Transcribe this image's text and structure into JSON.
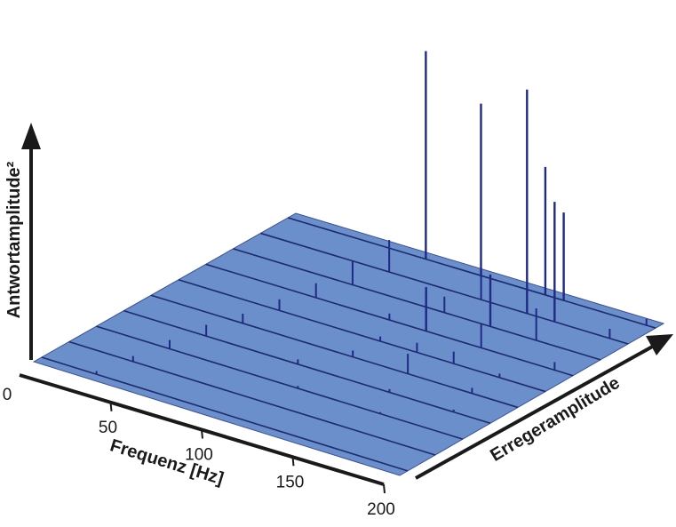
{
  "chart_data": {
    "type": "waterfall-3d",
    "xlabel": "Frequenz [Hz]",
    "ylabel": "Antwortamplitude²",
    "zlabel": "Erregeramplitude",
    "x_ticks": [
      "0",
      "50",
      "100",
      "150",
      "200"
    ],
    "x_tick_values": [
      0,
      50,
      100,
      150,
      200
    ],
    "xlim": [
      0,
      200
    ],
    "units_y": "relative",
    "surface_color": "#6b8fca",
    "line_color": "#1e2a6e",
    "spike_color": "#1f2a86",
    "series": [
      {
        "peaks": [
          [
            30,
            4
          ]
        ]
      },
      {
        "peaks": [
          [
            35,
            7
          ]
        ]
      },
      {
        "peaks": [
          [
            40,
            11
          ],
          [
            110,
            3
          ],
          [
            155,
            2
          ]
        ]
      },
      {
        "peaks": [
          [
            45,
            14
          ],
          [
            95,
            6
          ],
          [
            145,
            4
          ],
          [
            180,
            3
          ]
        ]
      },
      {
        "peaks": [
          [
            50,
            12
          ],
          [
            110,
            8
          ],
          [
            140,
            25
          ],
          [
            175,
            7
          ]
        ]
      },
      {
        "peaks": [
          [
            55,
            14
          ],
          [
            110,
            6
          ],
          [
            130,
            12
          ],
          [
            150,
            15
          ],
          [
            175,
            5
          ]
        ]
      },
      {
        "peaks": [
          [
            60,
            18
          ],
          [
            100,
            8
          ],
          [
            120,
            55
          ],
          [
            150,
            30
          ],
          [
            190,
            10
          ]
        ]
      },
      {
        "peaks": [
          [
            65,
            30
          ],
          [
            115,
            20
          ],
          [
            140,
            65
          ],
          [
            165,
            40
          ]
        ]
      },
      {
        "peaks": [
          [
            70,
            40
          ],
          [
            120,
            40
          ],
          [
            145,
            280
          ],
          [
            160,
            150
          ],
          [
            190,
            12
          ]
        ]
      },
      {
        "peaks": [
          [
            75,
            260
          ],
          [
            105,
            215
          ],
          [
            140,
            160
          ],
          [
            150,
            110
          ],
          [
            195,
            8
          ]
        ]
      }
    ]
  },
  "axis_labels": {
    "x": "Frequenz [Hz]",
    "y": "Antwortamplitude²",
    "z": "Erregeramplitude"
  }
}
